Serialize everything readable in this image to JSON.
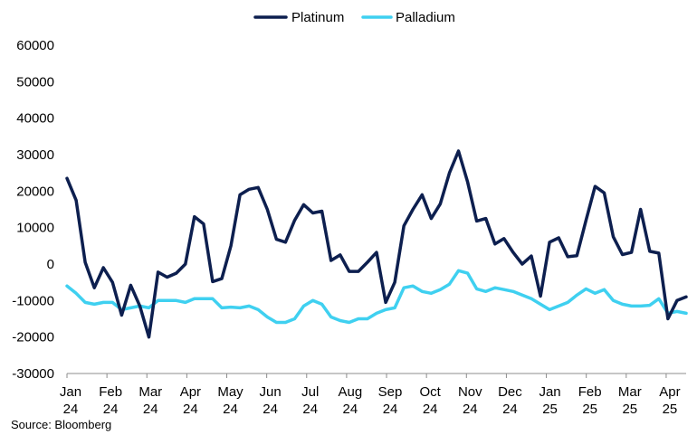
{
  "chart_data": {
    "type": "line",
    "colors": {
      "Platinum": "#0d1f4f",
      "Palladium": "#3fd0f0"
    },
    "legend_position": "top",
    "grid": false,
    "ylim": [
      -30000,
      60000
    ],
    "yticks": [
      -30000,
      -20000,
      -10000,
      0,
      10000,
      20000,
      30000,
      40000,
      50000,
      60000
    ],
    "ytick_labels": [
      "-30000",
      "-20000",
      "-10000",
      "0",
      "10000",
      "20000",
      "30000",
      "40000",
      "50000",
      "60000"
    ],
    "xticks": [
      {
        "line1": "Jan",
        "line2": "24"
      },
      {
        "line1": "Feb",
        "line2": "24"
      },
      {
        "line1": "Mar",
        "line2": "24"
      },
      {
        "line1": "Apr",
        "line2": "24"
      },
      {
        "line1": "May",
        "line2": "24"
      },
      {
        "line1": "Jun",
        "line2": "24"
      },
      {
        "line1": "Jul",
        "line2": "24"
      },
      {
        "line1": "Aug",
        "line2": "24"
      },
      {
        "line1": "Sep",
        "line2": "24"
      },
      {
        "line1": "Oct",
        "line2": "24"
      },
      {
        "line1": "Nov",
        "line2": "24"
      },
      {
        "line1": "Dec",
        "line2": "24"
      },
      {
        "line1": "Jan",
        "line2": "25"
      },
      {
        "line1": "Feb",
        "line2": "25"
      },
      {
        "line1": "Mar",
        "line2": "25"
      },
      {
        "line1": "Apr",
        "line2": "25"
      }
    ],
    "series": [
      {
        "name": "Platinum",
        "values": [
          23500,
          17500,
          500,
          -6500,
          -1000,
          -5000,
          -14000,
          -5800,
          -11500,
          -20000,
          -2200,
          -3600,
          -2500,
          0,
          13000,
          11000,
          -4800,
          -4000,
          5000,
          19000,
          20500,
          21000,
          15000,
          6800,
          6000,
          12000,
          16300,
          14000,
          14500,
          1000,
          2500,
          -2000,
          -2000,
          500,
          3200,
          -10500,
          -5000,
          10500,
          15000,
          19000,
          12500,
          16500,
          25000,
          31000,
          22500,
          11800,
          12500,
          5500,
          7000,
          3200,
          0,
          2200,
          -8800,
          6000,
          7200,
          2000,
          2300,
          12000,
          21300,
          19500,
          7500,
          2600,
          3200,
          15000,
          3500,
          3000,
          -15000,
          -10000,
          -9000
        ]
      },
      {
        "name": "Palladium",
        "values": [
          -6000,
          -8000,
          -10500,
          -11000,
          -10500,
          -10500,
          -12500,
          -12000,
          -11500,
          -12000,
          -10000,
          -10000,
          -10000,
          -10500,
          -9500,
          -9500,
          -9500,
          -12000,
          -11800,
          -12000,
          -11500,
          -12500,
          -14500,
          -16000,
          -16000,
          -15000,
          -11500,
          -10000,
          -11000,
          -14500,
          -15500,
          -16000,
          -15000,
          -15000,
          -13500,
          -12500,
          -12000,
          -6500,
          -6000,
          -7500,
          -8000,
          -7000,
          -5500,
          -1800,
          -2500,
          -6800,
          -7500,
          -6500,
          -7000,
          -7500,
          -8500,
          -9500,
          -11000,
          -12500,
          -11500,
          -10500,
          -8500,
          -6800,
          -8000,
          -7000,
          -10000,
          -11000,
          -11500,
          -11500,
          -11300,
          -9500,
          -13500,
          -13000,
          -13500
        ]
      }
    ],
    "source": "Source: Bloomberg"
  }
}
